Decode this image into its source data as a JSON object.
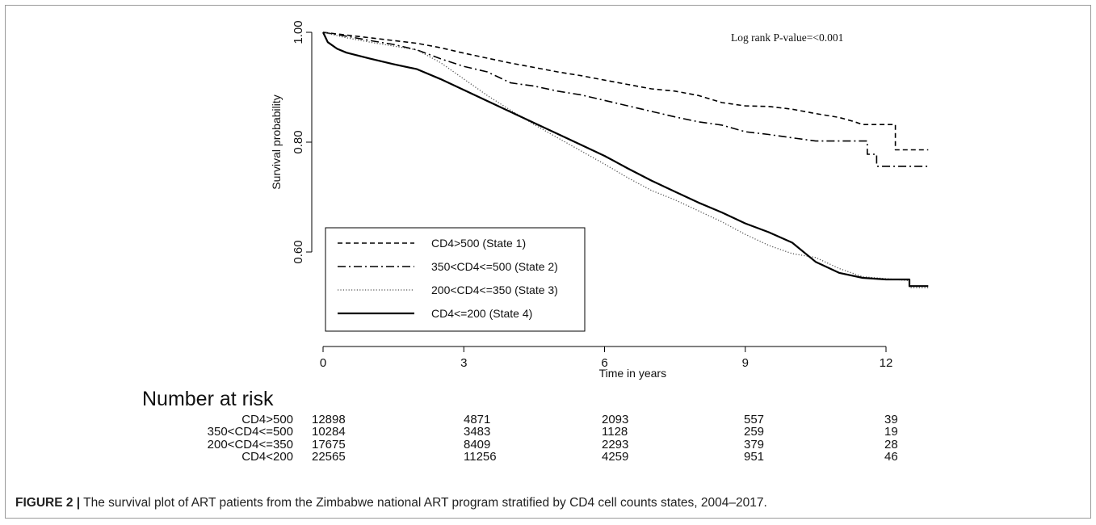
{
  "chart_data": {
    "type": "line",
    "subtype": "kaplan-meier",
    "xlabel": "Time in years",
    "ylabel": "Survival probability",
    "annotation": "Log rank P-value=<0.001",
    "x_ticks": [
      0,
      3,
      6,
      9,
      12
    ],
    "y_ticks": [
      {
        "value": 1.0,
        "label": "1.00"
      },
      {
        "value": 0.8,
        "label": "0.80"
      },
      {
        "value": 0.6,
        "label": "0.60"
      }
    ],
    "xlim": [
      0,
      13
    ],
    "ylim": [
      0.52,
      1.01
    ],
    "legend_position": "bottom-left",
    "series": [
      {
        "name": "CD4>500 (State 1)",
        "dash": "dashed",
        "points": [
          [
            0,
            1.0
          ],
          [
            0.5,
            0.995
          ],
          [
            1,
            0.99
          ],
          [
            1.5,
            0.985
          ],
          [
            2,
            0.98
          ],
          [
            2.5,
            0.972
          ],
          [
            3,
            0.962
          ],
          [
            3.5,
            0.953
          ],
          [
            4,
            0.944
          ],
          [
            4.5,
            0.936
          ],
          [
            5,
            0.928
          ],
          [
            5.5,
            0.921
          ],
          [
            6,
            0.913
          ],
          [
            6.5,
            0.905
          ],
          [
            7,
            0.897
          ],
          [
            7.5,
            0.893
          ],
          [
            8,
            0.885
          ],
          [
            8.5,
            0.872
          ],
          [
            9,
            0.866
          ],
          [
            9.5,
            0.865
          ],
          [
            10,
            0.86
          ],
          [
            10.5,
            0.852
          ],
          [
            11,
            0.845
          ],
          [
            11.3,
            0.838
          ],
          [
            11.5,
            0.832
          ],
          [
            12.2,
            0.832
          ],
          [
            12.2,
            0.786
          ],
          [
            12.9,
            0.786
          ]
        ]
      },
      {
        "name": "350<CD4<=500 (State 2)",
        "dash": "dashdot",
        "points": [
          [
            0,
            1.0
          ],
          [
            0.5,
            0.993
          ],
          [
            1,
            0.985
          ],
          [
            1.5,
            0.978
          ],
          [
            2,
            0.968
          ],
          [
            2.5,
            0.952
          ],
          [
            3,
            0.938
          ],
          [
            3.5,
            0.928
          ],
          [
            4,
            0.908
          ],
          [
            4.5,
            0.902
          ],
          [
            5,
            0.893
          ],
          [
            5.5,
            0.886
          ],
          [
            6,
            0.876
          ],
          [
            6.5,
            0.866
          ],
          [
            7,
            0.856
          ],
          [
            7.5,
            0.846
          ],
          [
            8,
            0.837
          ],
          [
            8.5,
            0.831
          ],
          [
            9,
            0.819
          ],
          [
            9.5,
            0.814
          ],
          [
            10,
            0.808
          ],
          [
            10.5,
            0.802
          ],
          [
            11,
            0.802
          ],
          [
            11.6,
            0.802
          ],
          [
            11.6,
            0.778
          ],
          [
            11.8,
            0.778
          ],
          [
            11.8,
            0.756
          ],
          [
            12.9,
            0.756
          ]
        ]
      },
      {
        "name": "200<CD4<=350 (State 3)",
        "dash": "dotted",
        "points": [
          [
            0,
            1.0
          ],
          [
            0.5,
            0.99
          ],
          [
            1,
            0.982
          ],
          [
            1.5,
            0.975
          ],
          [
            2,
            0.968
          ],
          [
            2.5,
            0.945
          ],
          [
            3,
            0.915
          ],
          [
            3.5,
            0.885
          ],
          [
            4,
            0.858
          ],
          [
            4.5,
            0.832
          ],
          [
            5,
            0.808
          ],
          [
            5.5,
            0.784
          ],
          [
            6,
            0.76
          ],
          [
            6.5,
            0.735
          ],
          [
            7,
            0.712
          ],
          [
            7.5,
            0.695
          ],
          [
            8,
            0.675
          ],
          [
            8.5,
            0.655
          ],
          [
            9,
            0.632
          ],
          [
            9.5,
            0.612
          ],
          [
            10,
            0.597
          ],
          [
            10.5,
            0.59
          ],
          [
            11,
            0.57
          ],
          [
            11.5,
            0.555
          ],
          [
            12.2,
            0.55
          ],
          [
            12.5,
            0.548
          ],
          [
            12.5,
            0.535
          ],
          [
            12.9,
            0.535
          ]
        ]
      },
      {
        "name": "CD4<=200 (State 4)",
        "dash": "solid",
        "points": [
          [
            0,
            1.0
          ],
          [
            0.1,
            0.982
          ],
          [
            0.3,
            0.97
          ],
          [
            0.5,
            0.963
          ],
          [
            1,
            0.952
          ],
          [
            1.5,
            0.942
          ],
          [
            2,
            0.933
          ],
          [
            2.5,
            0.915
          ],
          [
            3,
            0.895
          ],
          [
            3.5,
            0.875
          ],
          [
            4,
            0.855
          ],
          [
            4.5,
            0.835
          ],
          [
            5,
            0.815
          ],
          [
            5.5,
            0.795
          ],
          [
            6,
            0.775
          ],
          [
            6.5,
            0.752
          ],
          [
            7,
            0.73
          ],
          [
            7.5,
            0.71
          ],
          [
            8,
            0.69
          ],
          [
            8.5,
            0.672
          ],
          [
            9,
            0.652
          ],
          [
            9.5,
            0.636
          ],
          [
            10,
            0.617
          ],
          [
            10.5,
            0.582
          ],
          [
            11,
            0.562
          ],
          [
            11.5,
            0.553
          ],
          [
            12,
            0.55
          ],
          [
            12.5,
            0.55
          ],
          [
            12.5,
            0.538
          ],
          [
            12.9,
            0.538
          ]
        ]
      }
    ],
    "risk_table": {
      "title": "Number at risk",
      "rows": [
        {
          "label": "CD4>500",
          "values": [
            "12898",
            "4871",
            "2093",
            "557",
            "39"
          ]
        },
        {
          "label": "350<CD4<=500",
          "values": [
            "10284",
            "3483",
            "1128",
            "259",
            "19"
          ]
        },
        {
          "label": "200<CD4<=350",
          "values": [
            "17675",
            "8409",
            "2293",
            "379",
            "28"
          ]
        },
        {
          "label": "CD4<200",
          "values": [
            "22565",
            "11256",
            "4259",
            "951",
            "46"
          ]
        }
      ]
    }
  },
  "caption": {
    "prefix": "FIGURE 2 |",
    "text": " The survival plot of ART patients from the Zimbabwe national ART program stratified by CD4 cell counts states, 2004–2017."
  }
}
